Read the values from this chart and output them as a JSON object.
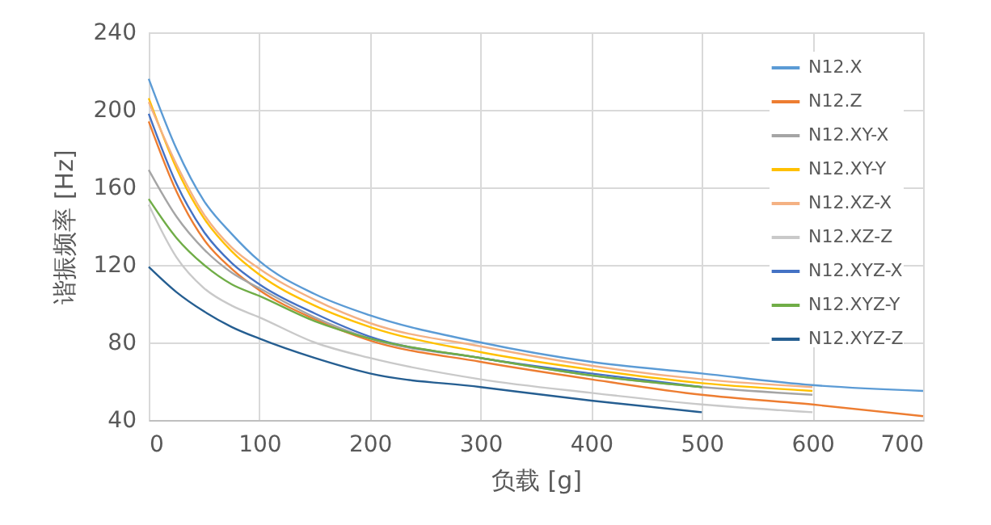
{
  "chart_data": {
    "type": "line",
    "xlabel": "负载 [g]",
    "ylabel": "谐振频率 [Hz]",
    "x": [
      0,
      25,
      50,
      75,
      100,
      150,
      200,
      300,
      400,
      500,
      600,
      700
    ],
    "xlim": [
      0,
      700
    ],
    "xticks": [
      0,
      100,
      200,
      300,
      400,
      500,
      600,
      700
    ],
    "ylim": [
      40,
      240
    ],
    "yticks": [
      40,
      80,
      120,
      160,
      200,
      240
    ],
    "grid": true,
    "legend": "top right",
    "marker": "none",
    "line_style": "solid",
    "series": [
      {
        "name": "N12.X",
        "color": "#5b9bd5",
        "values": [
          216,
          180,
          153,
          136,
          122,
          105,
          94,
          80,
          70,
          64,
          58,
          55
        ]
      },
      {
        "name": "N12.Z",
        "color": "#ed7d31",
        "values": [
          194,
          158,
          133,
          118,
          107,
          92,
          81,
          70,
          61,
          53,
          48,
          42
        ]
      },
      {
        "name": "N12.XY-X",
        "color": "#a5a5a5",
        "values": [
          169,
          145,
          128,
          116,
          108,
          93,
          82,
          72,
          63,
          57,
          53,
          null
        ]
      },
      {
        "name": "N12.XY-Y",
        "color": "#ffc000",
        "values": [
          206,
          170,
          144,
          127,
          115,
          99,
          88,
          75,
          66,
          59,
          55,
          null
        ]
      },
      {
        "name": "N12.XZ-X",
        "color": "#f4b183",
        "values": [
          204,
          172,
          146,
          129,
          118,
          102,
          90,
          78,
          68,
          61,
          57,
          null
        ]
      },
      {
        "name": "N12.XZ-Z",
        "color": "#c9c9c9",
        "values": [
          151,
          124,
          108,
          99,
          93,
          80,
          72,
          61,
          54,
          48,
          44,
          null
        ]
      },
      {
        "name": "N12.XYZ-X",
        "color": "#4472c4",
        "values": [
          198,
          162,
          137,
          121,
          110,
          95,
          83,
          72,
          64,
          57,
          null,
          null
        ]
      },
      {
        "name": "N12.XYZ-Y",
        "color": "#70ad47",
        "values": [
          154,
          134,
          120,
          110,
          104,
          91,
          82,
          72,
          63,
          57,
          null,
          null
        ]
      },
      {
        "name": "N12.XYZ-Z",
        "color": "#255e91",
        "values": [
          119,
          106,
          96,
          88,
          82,
          72,
          64,
          57,
          50,
          44,
          null,
          null
        ]
      }
    ]
  }
}
